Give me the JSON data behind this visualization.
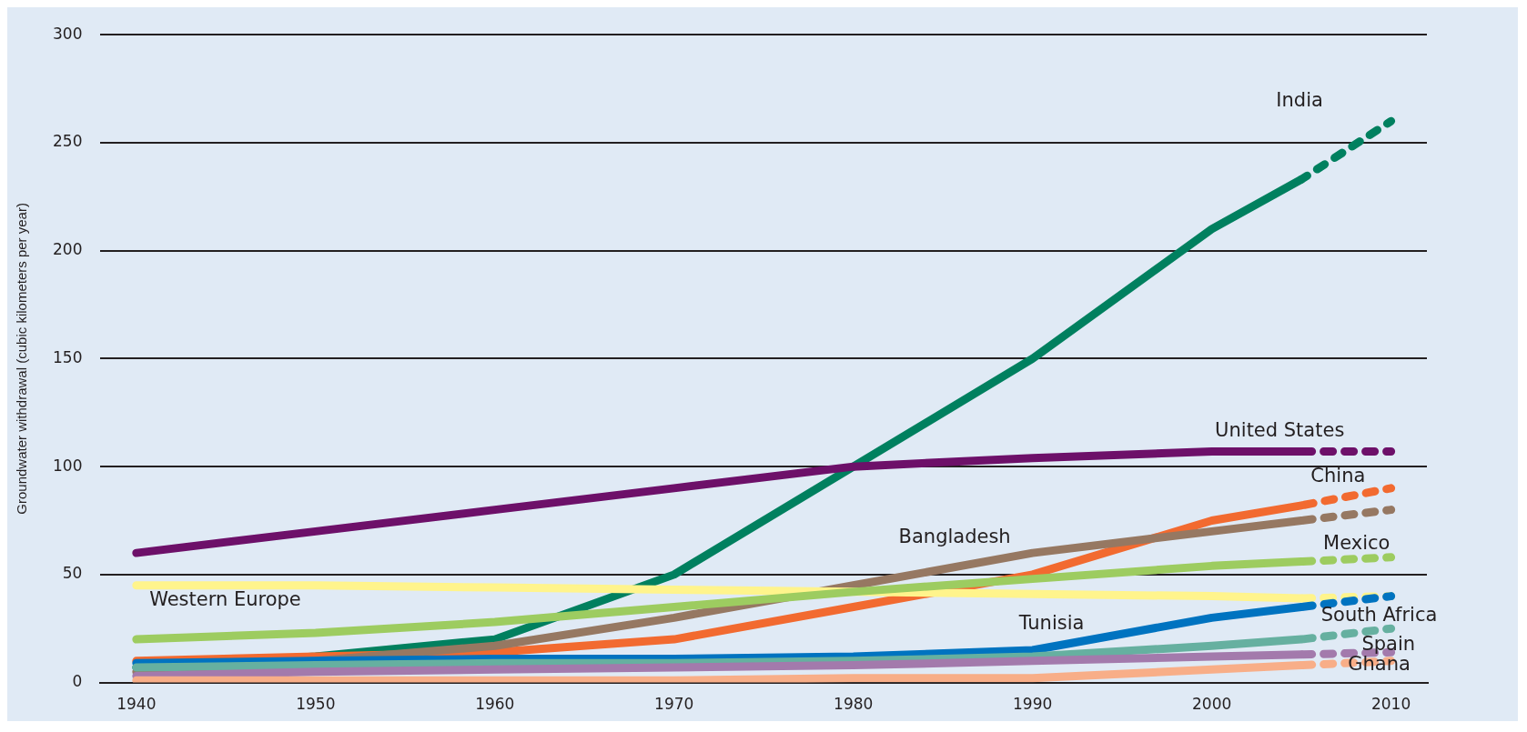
{
  "chart_data": {
    "type": "line",
    "ylabel": "Groundwater withdrawal (cubic kilometers per year)",
    "xlim": [
      1938,
      2012
    ],
    "xticks": [
      1940,
      1950,
      1960,
      1970,
      1980,
      1990,
      2000,
      2010
    ],
    "ylim": [
      0,
      300
    ],
    "yticks": [
      0,
      50,
      100,
      150,
      200,
      250,
      300
    ],
    "grid": "y",
    "legend": false,
    "marker": "none",
    "series": [
      {
        "color": "#f8ae88",
        "x": [
          1940,
          1950,
          1960,
          1970,
          1980,
          1990,
          2000,
          2005
        ],
        "values": [
          1,
          1,
          1,
          1,
          2,
          2,
          6,
          8
        ],
        "line_style": "solid"
      },
      {
        "color": "#f8ae88",
        "x": [
          2005,
          2010
        ],
        "values": [
          8,
          10
        ],
        "line_style": "dashed"
      },
      {
        "color": "#a37aac",
        "x": [
          1940,
          1950,
          1960,
          1970,
          1980,
          1990,
          2000,
          2005
        ],
        "values": [
          3,
          5,
          6,
          7,
          8,
          10,
          12,
          13
        ],
        "line_style": "solid"
      },
      {
        "color": "#a37aac",
        "x": [
          2005,
          2010
        ],
        "values": [
          13,
          14
        ],
        "line_style": "dashed"
      },
      {
        "color": "#66b0a0",
        "x": [
          1940,
          1950,
          1960,
          1970,
          1980,
          1990,
          2000,
          2005
        ],
        "values": [
          7,
          8,
          9,
          9,
          10,
          12,
          17,
          20
        ],
        "line_style": "solid"
      },
      {
        "color": "#66b0a0",
        "x": [
          2005,
          2010
        ],
        "values": [
          20,
          25
        ],
        "line_style": "dashed"
      },
      {
        "color": "#0073c0",
        "x": [
          1940,
          1950,
          1960,
          1970,
          1980,
          1990,
          2000,
          2005
        ],
        "values": [
          9,
          10,
          11,
          11,
          12,
          15,
          30,
          35
        ],
        "line_style": "solid"
      },
      {
        "color": "#0073c0",
        "x": [
          2005,
          2010
        ],
        "values": [
          35,
          40
        ],
        "line_style": "dashed"
      },
      {
        "color": "#9dcc60",
        "x": [
          1940,
          1950,
          1960,
          1970,
          1980,
          1990,
          2000,
          2005
        ],
        "values": [
          20,
          23,
          28,
          35,
          42,
          48,
          54,
          56
        ],
        "line_style": "solid"
      },
      {
        "color": "#9dcc60",
        "x": [
          2005,
          2010
        ],
        "values": [
          56,
          58
        ],
        "line_style": "dashed"
      },
      {
        "color": "#fff48c",
        "x": [
          1940,
          1950,
          1960,
          1970,
          1980,
          1990,
          2000,
          2005
        ],
        "values": [
          45,
          45,
          44,
          43,
          42,
          41,
          40,
          39
        ],
        "line_style": "solid"
      },
      {
        "color": "#fff48c",
        "x": [
          2005,
          2010
        ],
        "values": [
          39,
          40
        ],
        "line_style": "dashed"
      },
      {
        "color": "#967862",
        "x": [
          1940,
          1950,
          1960,
          1970,
          1980,
          1990,
          2000,
          2005
        ],
        "values": [
          5,
          10,
          17,
          30,
          45,
          60,
          70,
          75
        ],
        "line_style": "solid"
      },
      {
        "color": "#967862",
        "x": [
          2005,
          2010
        ],
        "values": [
          75,
          80
        ],
        "line_style": "dashed"
      },
      {
        "color": "#f26a30",
        "x": [
          1940,
          1950,
          1960,
          1970,
          1980,
          1990,
          2000,
          2005
        ],
        "values": [
          10,
          12,
          14,
          20,
          35,
          50,
          75,
          82
        ],
        "line_style": "solid"
      },
      {
        "color": "#f26a30",
        "x": [
          2005,
          2010
        ],
        "values": [
          82,
          90
        ],
        "line_style": "dashed"
      },
      {
        "color": "#6d1069",
        "x": [
          1940,
          1950,
          1960,
          1970,
          1980,
          1990,
          2000,
          2005
        ],
        "values": [
          60,
          70,
          80,
          90,
          100,
          104,
          107,
          107
        ],
        "line_style": "solid"
      },
      {
        "color": "#6d1069",
        "x": [
          2005,
          2010
        ],
        "values": [
          107,
          107
        ],
        "line_style": "dashed"
      },
      {
        "color": "#00805f",
        "x": [
          1940,
          1950,
          1960,
          1970,
          1980,
          1990,
          2000,
          2005
        ],
        "values": [
          7,
          12,
          20,
          50,
          100,
          150,
          210,
          233
        ],
        "line_style": "solid"
      },
      {
        "color": "#00805f",
        "x": [
          2005,
          2010
        ],
        "values": [
          233,
          260
        ],
        "line_style": "dashed"
      }
    ],
    "annotations": [
      "India",
      "United States",
      "China",
      "Bangladesh",
      "Mexico",
      "Western Europe",
      "Tunisia",
      "South Africa",
      "Spain",
      "Ghana"
    ]
  }
}
